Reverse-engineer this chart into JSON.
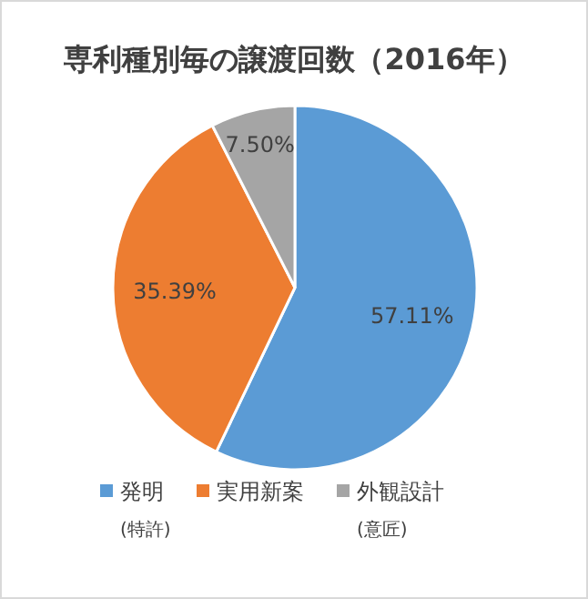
{
  "chart_data": {
    "type": "pie",
    "title": "専利種別毎の譲渡回数（2016年）",
    "categories": [
      "発明",
      "実用新案",
      "外観設計"
    ],
    "values": [
      57.11,
      35.39,
      7.5
    ],
    "colors": [
      "#5b9bd5",
      "#ed7d31",
      "#a5a5a5"
    ],
    "value_labels": [
      "57.11%",
      "35.39%",
      "7.50%"
    ],
    "legend": "bottom",
    "annotations": [
      "(特許)",
      "(意匠)"
    ]
  }
}
